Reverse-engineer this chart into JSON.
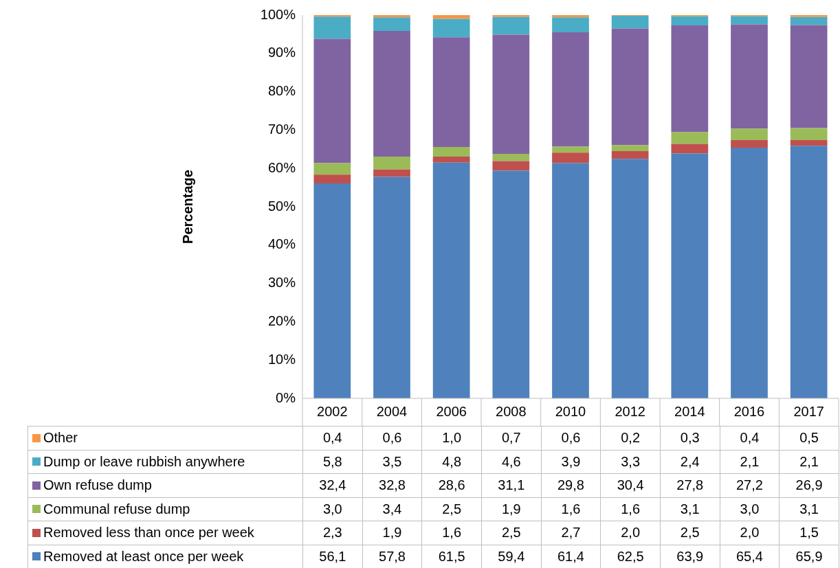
{
  "chart_data": {
    "type": "bar",
    "stacked": true,
    "ylabel": "Percentage",
    "categories": [
      "2002",
      "2004",
      "2006",
      "2008",
      "2010",
      "2012",
      "2014",
      "2016",
      "2017"
    ],
    "ylim": [
      0,
      100
    ],
    "yticks": [
      {
        "value": 0,
        "label": "0%"
      },
      {
        "value": 10,
        "label": "10%"
      },
      {
        "value": 20,
        "label": "20%"
      },
      {
        "value": 30,
        "label": "30%"
      },
      {
        "value": 40,
        "label": "40%"
      },
      {
        "value": 50,
        "label": "50%"
      },
      {
        "value": 60,
        "label": "60%"
      },
      {
        "value": 70,
        "label": "70%"
      },
      {
        "value": 80,
        "label": "80%"
      },
      {
        "value": 90,
        "label": "90%"
      },
      {
        "value": 100,
        "label": "100%"
      }
    ],
    "legend": "bottom",
    "series": [
      {
        "name": "Removed at least once per week",
        "color": "#4f81bd",
        "values": [
          56.1,
          57.8,
          61.5,
          59.4,
          61.4,
          62.5,
          63.9,
          65.4,
          65.9
        ],
        "value_labels": [
          "56,1",
          "57,8",
          "61,5",
          "59,4",
          "61,4",
          "62,5",
          "63,9",
          "65,4",
          "65,9"
        ]
      },
      {
        "name": "Removed less than once per week",
        "color": "#c0504d",
        "values": [
          2.3,
          1.9,
          1.6,
          2.5,
          2.7,
          2.0,
          2.5,
          2.0,
          1.5
        ],
        "value_labels": [
          "2,3",
          "1,9",
          "1,6",
          "2,5",
          "2,7",
          "2,0",
          "2,5",
          "2,0",
          "1,5"
        ]
      },
      {
        "name": "Communal refuse dump",
        "color": "#9bbb59",
        "values": [
          3.0,
          3.4,
          2.5,
          1.9,
          1.6,
          1.6,
          3.1,
          3.0,
          3.1
        ],
        "value_labels": [
          "3,0",
          "3,4",
          "2,5",
          "1,9",
          "1,6",
          "1,6",
          "3,1",
          "3,0",
          "3,1"
        ]
      },
      {
        "name": "Own refuse dump",
        "color": "#8064a2",
        "values": [
          32.4,
          32.8,
          28.6,
          31.1,
          29.8,
          30.4,
          27.8,
          27.2,
          26.9
        ],
        "value_labels": [
          "32,4",
          "32,8",
          "28,6",
          "31,1",
          "29,8",
          "30,4",
          "27,8",
          "27,2",
          "26,9"
        ]
      },
      {
        "name": "Dump or leave rubbish anywhere",
        "color": "#4bacc6",
        "values": [
          5.8,
          3.5,
          4.8,
          4.6,
          3.9,
          3.3,
          2.4,
          2.1,
          2.1
        ],
        "value_labels": [
          "5,8",
          "3,5",
          "4,8",
          "4,6",
          "3,9",
          "3,3",
          "2,4",
          "2,1",
          "2,1"
        ]
      },
      {
        "name": "Other",
        "color": "#f79646",
        "values": [
          0.4,
          0.6,
          1.0,
          0.7,
          0.6,
          0.2,
          0.3,
          0.4,
          0.5
        ],
        "value_labels": [
          "0,4",
          "0,6",
          "1,0",
          "0,7",
          "0,6",
          "0,2",
          "0,3",
          "0,4",
          "0,5"
        ]
      }
    ]
  }
}
